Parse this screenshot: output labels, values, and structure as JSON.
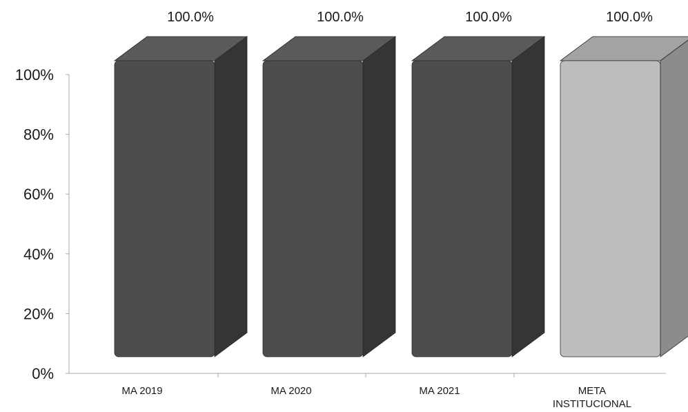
{
  "chart_data": {
    "type": "bar",
    "categories": [
      [
        "MA 2019"
      ],
      [
        "MA 2020"
      ],
      [
        "MA 2021"
      ],
      [
        "META",
        "INSTITUCIONAL"
      ]
    ],
    "values": [
      100.0,
      100.0,
      100.0,
      100.0
    ],
    "data_labels": [
      "100.0%",
      "100.0%",
      "100.0%",
      "100.0%"
    ],
    "y_ticks": [
      "0%",
      "20%",
      "40%",
      "60%",
      "80%",
      "100%"
    ],
    "ylim": [
      0,
      100
    ],
    "title": "",
    "xlabel": "",
    "ylabel": "",
    "style": "3d",
    "grid": false,
    "legend": "none",
    "colors": {
      "bar_front": [
        "#4d4d4d",
        "#4d4d4d",
        "#4d4d4d",
        "#bdbdbd"
      ],
      "bar_top": [
        "#5a5a5a",
        "#5a5a5a",
        "#5a5a5a",
        "#a3a3a3"
      ],
      "bar_side": [
        "#353535",
        "#353535",
        "#353535",
        "#8c8c8c"
      ],
      "axis": "#aaaaaa",
      "text": "#1a1a1a"
    }
  }
}
